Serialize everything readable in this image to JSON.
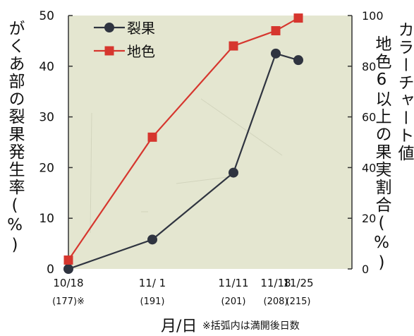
{
  "chart_data": {
    "type": "line",
    "title": "",
    "categories": [
      "10/18",
      "11/ 1",
      "11/11",
      "11/18",
      "11/25"
    ],
    "x_sublabels": [
      "(177)※",
      "(191)",
      "(201)",
      "(208)",
      "(215)"
    ],
    "series": [
      {
        "name": "裂果",
        "axis": "left",
        "color": "#2f3440",
        "marker": "circle",
        "values": [
          0,
          5.8,
          19,
          42.5,
          41.2
        ]
      },
      {
        "name": "地色",
        "axis": "right",
        "color": "#d6362e",
        "marker": "square",
        "values": [
          3.5,
          52,
          88,
          94,
          99
        ]
      }
    ],
    "y_left": {
      "label": "がくあ部の裂果発生率(%)",
      "range": [
        0,
        50
      ],
      "ticks": [
        0,
        10,
        20,
        30,
        40,
        50
      ]
    },
    "y_right": {
      "label_line1": "カラーチャート値",
      "label_line2": "地色6以上の果実割合(%)",
      "range": [
        0,
        100
      ],
      "ticks": [
        0,
        20,
        40,
        60,
        80,
        100
      ]
    },
    "xlabel": "月/日",
    "xlabel_note": "※括弧内は満開後日数",
    "legend_position": "top-left",
    "grid": false,
    "colors": {
      "plot_background": "#e4e6d0",
      "axis": "#333333"
    }
  }
}
